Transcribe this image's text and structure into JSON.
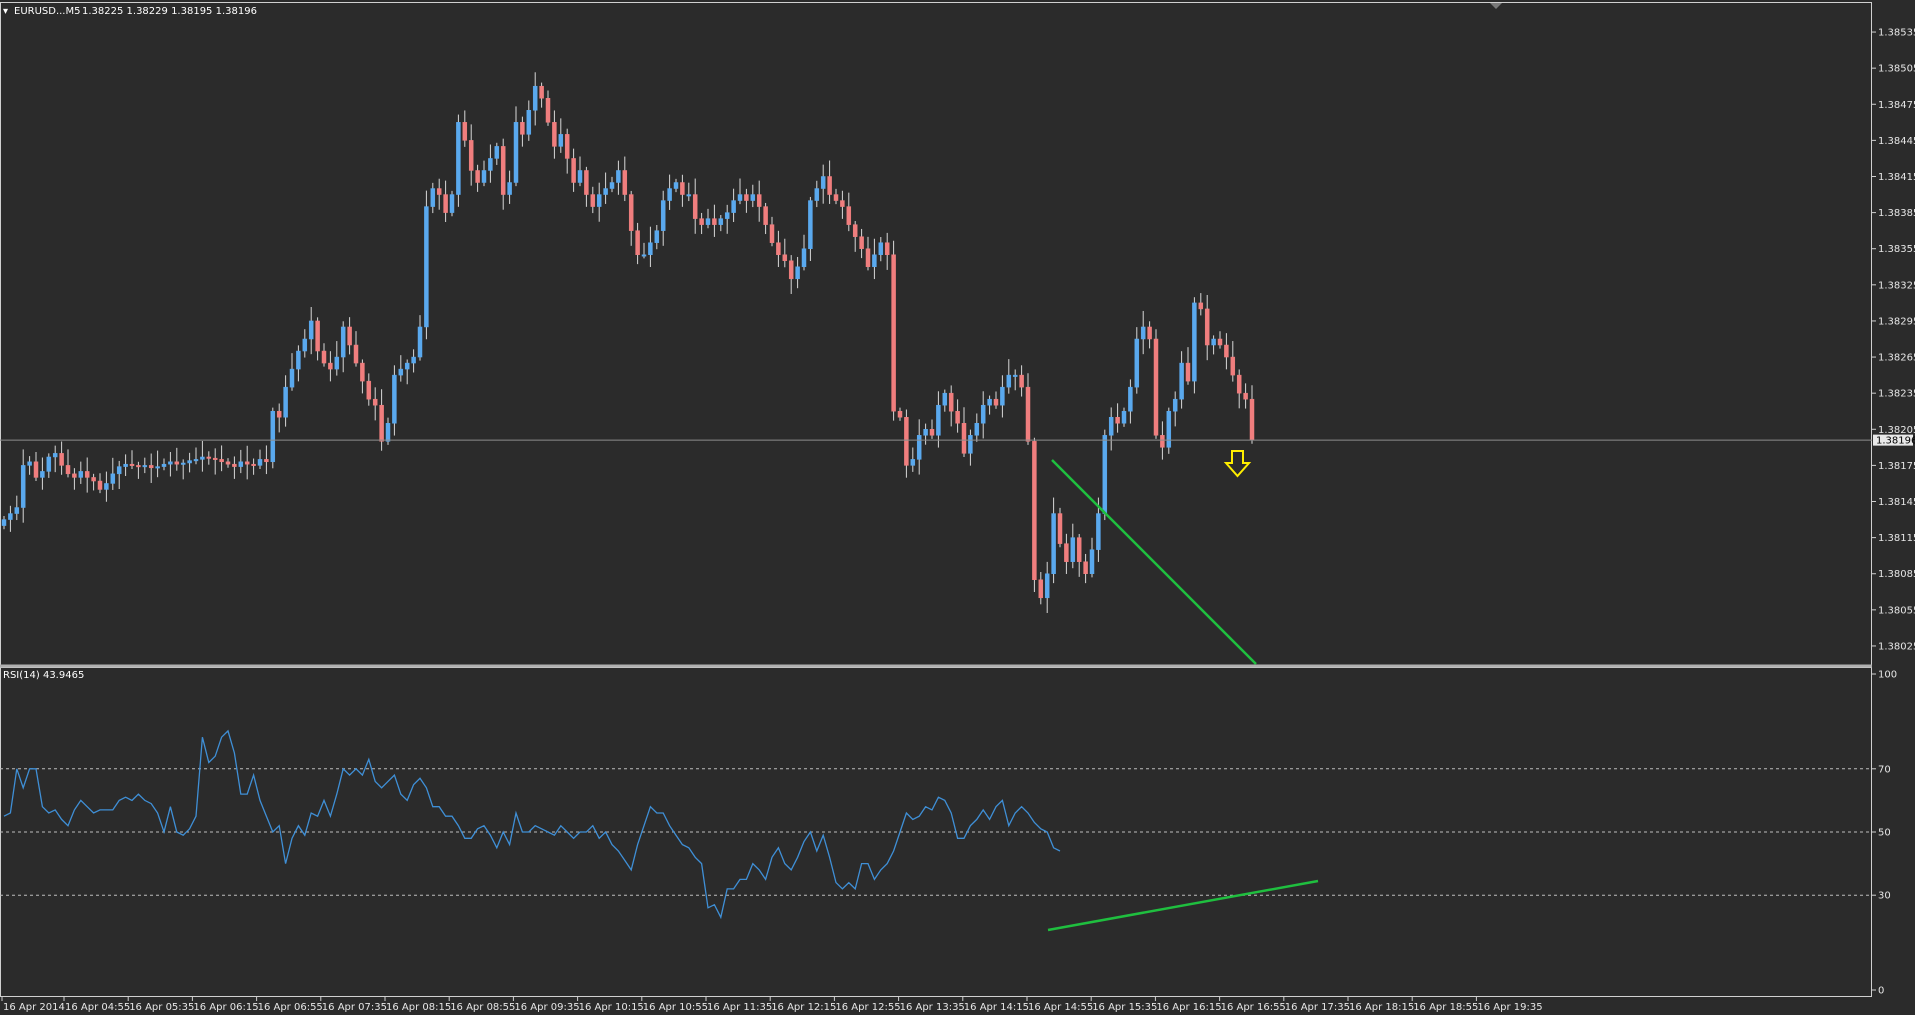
{
  "header": {
    "symbol": "EURUSD...M5",
    "ohlc": "1.38225 1.38229 1.38195 1.38196"
  },
  "rsi_header": "RSI(14) 43.9465",
  "colors": {
    "background": "#2b2b2b",
    "bull": "#5aa9ee",
    "bear": "#f07e7e",
    "wick": "#d8d8d8",
    "rsi_line": "#3f8fd6",
    "trendline": "#1fbf3f",
    "arrow": "#ffee00",
    "grid_dashed": "#bdbdbd"
  },
  "chart_data": [
    {
      "type": "candlestick",
      "title": "EURUSD...M5",
      "ylim": [
        1.38015,
        1.38545
      ],
      "y_ticks": [
        "1.38535",
        "1.38505",
        "1.38475",
        "1.38445",
        "1.38415",
        "1.38385",
        "1.38355",
        "1.38325",
        "1.38295",
        "1.38265",
        "1.38235",
        "1.38205",
        "1.38175",
        "1.38145",
        "1.38115",
        "1.38085",
        "1.38055",
        "1.38025"
      ],
      "current_price": "1.38196",
      "x_labels": [
        "16 Apr 2014",
        "16 Apr 04:55",
        "16 Apr 05:35",
        "16 Apr 06:15",
        "16 Apr 06:55",
        "16 Apr 07:35",
        "16 Apr 08:15",
        "16 Apr 08:55",
        "16 Apr 09:35",
        "16 Apr 10:15",
        "16 Apr 10:55",
        "16 Apr 11:35",
        "16 Apr 12:15",
        "16 Apr 12:55",
        "16 Apr 13:35",
        "16 Apr 14:15",
        "16 Apr 14:55",
        "16 Apr 15:35",
        "16 Apr 16:15",
        "16 Apr 16:55",
        "16 Apr 17:35",
        "16 Apr 18:15",
        "16 Apr 18:55",
        "16 Apr 19:35"
      ],
      "close": [
        1.3813,
        1.38135,
        1.3814,
        1.38175,
        1.38178,
        1.38165,
        1.3817,
        1.38182,
        1.38185,
        1.38175,
        1.38168,
        1.38165,
        1.3817,
        1.38165,
        1.38162,
        1.38155,
        1.3816,
        1.38168,
        1.38174,
        1.38176,
        1.38175,
        1.38174,
        1.38175,
        1.38173,
        1.38174,
        1.38176,
        1.38178,
        1.38176,
        1.38177,
        1.38179,
        1.3818,
        1.38182,
        1.38181,
        1.3818,
        1.38178,
        1.38176,
        1.38174,
        1.38178,
        1.38176,
        1.38175,
        1.3818,
        1.38178,
        1.3822,
        1.38215,
        1.3824,
        1.38255,
        1.3827,
        1.3828,
        1.38295,
        1.3827,
        1.3826,
        1.38255,
        1.38265,
        1.3829,
        1.38275,
        1.3826,
        1.38245,
        1.3823,
        1.38225,
        1.38195,
        1.3821,
        1.3825,
        1.38255,
        1.3826,
        1.38265,
        1.3829,
        1.3839,
        1.38405,
        1.384,
        1.38385,
        1.384,
        1.3846,
        1.38445,
        1.3842,
        1.3841,
        1.3842,
        1.3843,
        1.3844,
        1.384,
        1.3841,
        1.3846,
        1.3845,
        1.3847,
        1.3849,
        1.3848,
        1.3846,
        1.3844,
        1.3845,
        1.3843,
        1.3841,
        1.3842,
        1.384,
        1.3839,
        1.384,
        1.38405,
        1.3841,
        1.3842,
        1.384,
        1.3837,
        1.3835,
        1.3835,
        1.3836,
        1.3837,
        1.38395,
        1.38405,
        1.3841,
        1.384,
        1.384,
        1.3838,
        1.38375,
        1.3838,
        1.38375,
        1.3838,
        1.38385,
        1.38395,
        1.384,
        1.38395,
        1.384,
        1.3839,
        1.38375,
        1.3836,
        1.3835,
        1.38345,
        1.3833,
        1.3834,
        1.38355,
        1.38395,
        1.38405,
        1.38415,
        1.384,
        1.38395,
        1.3839,
        1.38375,
        1.38365,
        1.38355,
        1.3834,
        1.3835,
        1.3836,
        1.3835,
        1.3822,
        1.38215,
        1.38175,
        1.3818,
        1.382,
        1.38205,
        1.382,
        1.38225,
        1.38235,
        1.3822,
        1.3821,
        1.38185,
        1.382,
        1.3821,
        1.38225,
        1.3823,
        1.38225,
        1.3824,
        1.3825,
        1.3825,
        1.3824,
        1.38195,
        1.3808,
        1.38065,
        1.38085,
        1.38135,
        1.3811,
        1.38095,
        1.38115,
        1.38095,
        1.38085,
        1.38105,
        1.38135,
        1.382,
        1.38215,
        1.3821,
        1.3822,
        1.3824,
        1.3828,
        1.3829,
        1.3828,
        1.382,
        1.3819,
        1.3822,
        1.3823,
        1.3826,
        1.38245,
        1.3831,
        1.38305,
        1.38275,
        1.3828,
        1.38275,
        1.38265,
        1.3825,
        1.38235,
        1.3823,
        1.38196
      ]
    },
    {
      "type": "line",
      "title": "RSI(14) 43.9465",
      "ylim": [
        0,
        100
      ],
      "y_ticks": [
        "100",
        "70",
        "50",
        "30",
        "0"
      ],
      "levels": [
        70,
        50,
        30
      ],
      "series": [
        {
          "name": "RSI(14)",
          "values": [
            55,
            56,
            70,
            64,
            70,
            70,
            58,
            56,
            57,
            54,
            52,
            57,
            60,
            58,
            56,
            57,
            57,
            57,
            60,
            61,
            60,
            62,
            60,
            59,
            56,
            50,
            58,
            50,
            49,
            51,
            55,
            80,
            72,
            74,
            80,
            82,
            75,
            62,
            62,
            68,
            60,
            55,
            50,
            52,
            40,
            48,
            52,
            49,
            56,
            55,
            60,
            55,
            62,
            70,
            68,
            70,
            68,
            73,
            66,
            64,
            66,
            68,
            62,
            60,
            65,
            67,
            64,
            58,
            58,
            55,
            55,
            52,
            48,
            48,
            51,
            52,
            49,
            45,
            50,
            46,
            56,
            50,
            50,
            52,
            51,
            50,
            49,
            52,
            50,
            48,
            50,
            50,
            52,
            48,
            50,
            46,
            44,
            41,
            38,
            46,
            52,
            58,
            56,
            56,
            52,
            49,
            46,
            45,
            42,
            40,
            26,
            27,
            23,
            32,
            32,
            35,
            35,
            40,
            38,
            35,
            42,
            45,
            40,
            38,
            42,
            47,
            50,
            44,
            49,
            42,
            34,
            32,
            34,
            32,
            40,
            40,
            35,
            38,
            40,
            44,
            50,
            56,
            54,
            55,
            58,
            57,
            61,
            60,
            56,
            48,
            48,
            52,
            54,
            57,
            54,
            58,
            60,
            52,
            56,
            58,
            56,
            53,
            51,
            50,
            45,
            44
          ]
        }
      ]
    }
  ]
}
